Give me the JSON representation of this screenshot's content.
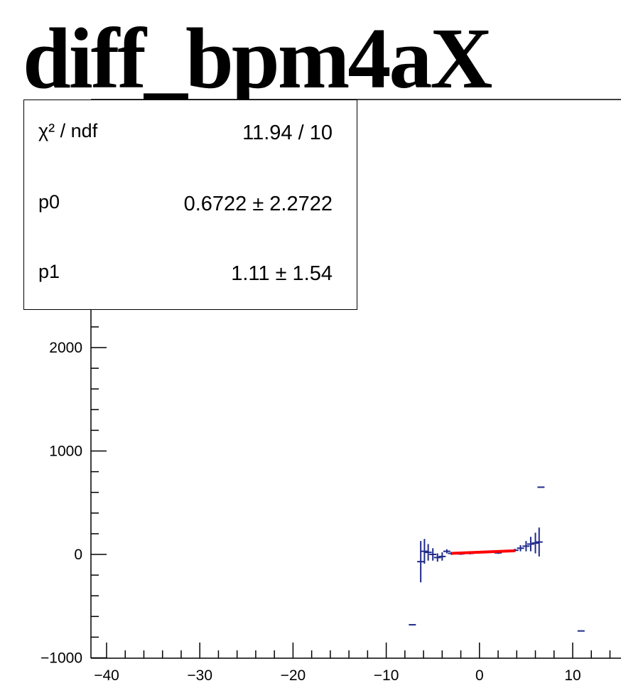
{
  "title": "diff_bpm4aX",
  "stats": [
    {
      "label": "χ² / ndf",
      "value": "11.94 / 10"
    },
    {
      "label": "p0",
      "value": "0.6722  ± 2.2722"
    },
    {
      "label": "p1",
      "value": "1.11 ± 1.54"
    }
  ],
  "colors": {
    "points": "#1f2a8a",
    "fit": "#ff0000",
    "axis": "#000000"
  },
  "chart_data": {
    "type": "scatter",
    "title": "diff_bpm4aX",
    "xlabel": "",
    "ylabel": "",
    "xlim": [
      -42,
      15
    ],
    "ylim": [
      -1000,
      2800
    ],
    "x_ticks": [
      -40,
      -30,
      -20,
      -10,
      0,
      10
    ],
    "x_tick_labels": [
      "−40",
      "−30",
      "−20",
      "−10",
      "0",
      "10"
    ],
    "y_ticks": [
      -1000,
      0,
      1000,
      2000
    ],
    "y_tick_labels": [
      "−1000",
      "0",
      "1000",
      "2000"
    ],
    "series": [
      {
        "type": "errorbar",
        "points": [
          {
            "x": -7.2,
            "y": -680,
            "err": 0
          },
          {
            "x": -6.3,
            "y": -70,
            "err": 200
          },
          {
            "x": -5.9,
            "y": 30,
            "err": 120
          },
          {
            "x": -5.5,
            "y": 20,
            "err": 80
          },
          {
            "x": -5.0,
            "y": 0,
            "err": 60
          },
          {
            "x": -4.5,
            "y": -30,
            "err": 40
          },
          {
            "x": -4.0,
            "y": -20,
            "err": 40
          },
          {
            "x": -3.5,
            "y": 30,
            "err": 20
          },
          {
            "x": -3.0,
            "y": 10,
            "err": 15
          },
          {
            "x": -2.0,
            "y": 5,
            "err": 10
          },
          {
            "x": -1.0,
            "y": 10,
            "err": 10
          },
          {
            "x": 0.0,
            "y": 20,
            "err": 10
          },
          {
            "x": 1.0,
            "y": 25,
            "err": 10
          },
          {
            "x": 2.0,
            "y": 15,
            "err": 10
          },
          {
            "x": 3.0,
            "y": 35,
            "err": 10
          },
          {
            "x": 3.8,
            "y": 40,
            "err": 15
          },
          {
            "x": 4.4,
            "y": 60,
            "err": 30
          },
          {
            "x": 5.0,
            "y": 80,
            "err": 50
          },
          {
            "x": 5.5,
            "y": 100,
            "err": 70
          },
          {
            "x": 6.0,
            "y": 110,
            "err": 100
          },
          {
            "x": 6.4,
            "y": 120,
            "err": 140
          },
          {
            "x": 6.6,
            "y": 650,
            "err": 0
          },
          {
            "x": 10.9,
            "y": -740,
            "err": 0
          }
        ]
      },
      {
        "type": "fit",
        "x": [
          -3.0,
          3.8
        ],
        "y": [
          10,
          35
        ]
      }
    ],
    "grid": false
  }
}
